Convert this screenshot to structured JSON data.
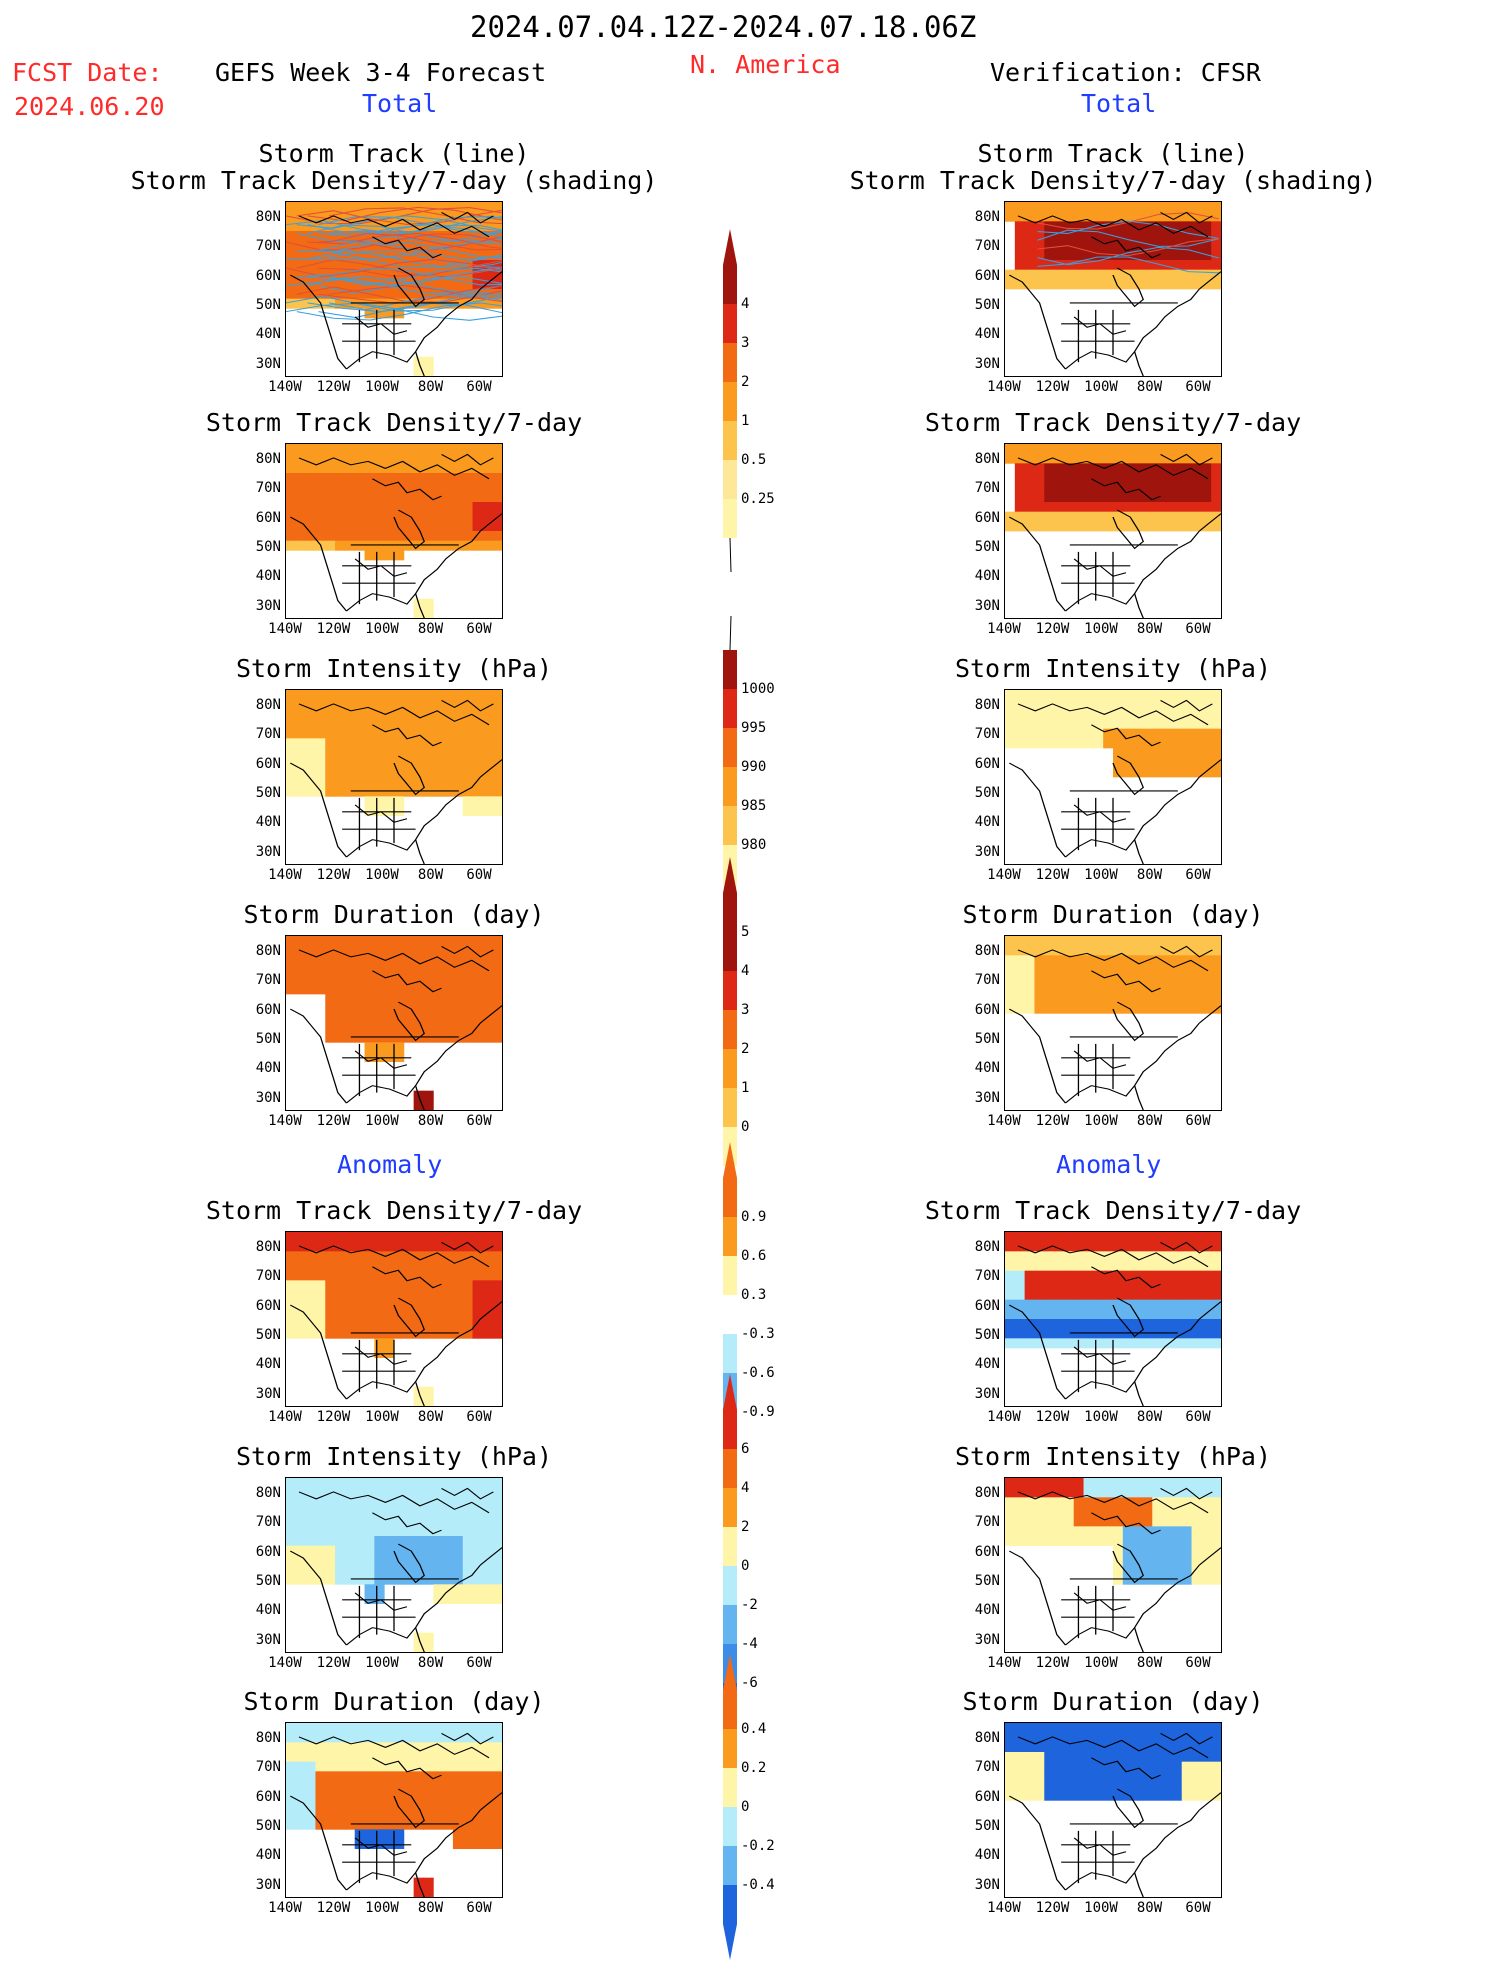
{
  "header": {
    "date_range": "2024.07.04.12Z-2024.07.18.06Z",
    "region": "N. America",
    "fcst_label": "FCST Date:",
    "fcst_date": "2024.06.20",
    "left_title": "GEFS Week 3-4 Forecast",
    "right_title": "Verification: CFSR",
    "total_left": "Total",
    "total_right": "Total",
    "anomaly_left": "Anomaly",
    "anomaly_right": "Anomaly"
  },
  "panels": {
    "storm_track_line": "Storm Track (line)",
    "storm_track_shading": "Storm Track Density/7-day (shading)",
    "density": "Storm Track Density/7-day",
    "intensity": "Storm Intensity (hPa)",
    "duration": "Storm Duration (day)"
  },
  "axes": {
    "lat_labels": [
      "80N",
      "70N",
      "60N",
      "50N",
      "40N",
      "30N"
    ],
    "lon_labels": [
      "140W",
      "120W",
      "100W",
      "80W",
      "60W"
    ]
  },
  "colorbars": {
    "density_total": [
      "4",
      "3",
      "2",
      "1",
      "0.5",
      "0.25"
    ],
    "intensity_total": [
      "1000",
      "995",
      "990",
      "985",
      "980"
    ],
    "duration_total": [
      "5",
      "4",
      "3",
      "2",
      "1",
      "0"
    ],
    "density_anom": [
      "0.9",
      "0.6",
      "0.3",
      "-0.3",
      "-0.6",
      "-0.9"
    ],
    "intensity_anom": [
      "6",
      "4",
      "2",
      "0",
      "-2",
      "-4",
      "-6"
    ],
    "duration_anom": [
      "0.4",
      "0.2",
      "0",
      "-0.2",
      "-0.4"
    ]
  },
  "colors": {
    "title_red": "#ff2a2a",
    "title_blue": "#1f3cff",
    "pale_yellow": "#fff5a8",
    "light_orange": "#fcc44c",
    "orange": "#fa9a1e",
    "dark_orange": "#f26a14",
    "red": "#dc2814",
    "dark_red": "#a0140e",
    "light_blue": "#b4ecfa",
    "mid_blue": "#64b4f0",
    "blue": "#1e64dc",
    "track_line": "#3aa0e0"
  }
}
